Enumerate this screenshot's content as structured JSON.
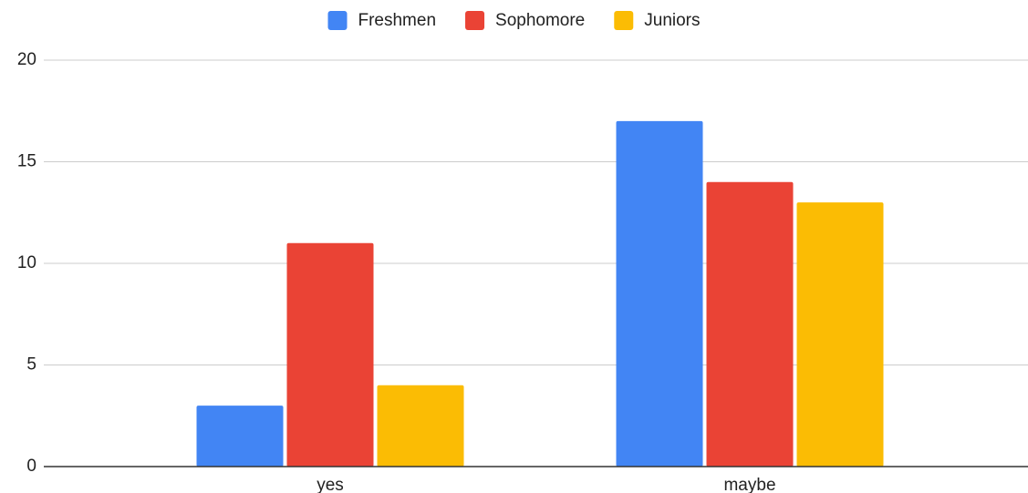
{
  "chart_data": {
    "type": "bar",
    "categories": [
      "yes",
      "maybe"
    ],
    "series": [
      {
        "name": "Freshmen",
        "color": "#4285f4",
        "values": [
          3,
          17
        ]
      },
      {
        "name": "Sophomore",
        "color": "#ea4335",
        "values": [
          11,
          14
        ]
      },
      {
        "name": "Juniors",
        "color": "#fbbc04",
        "values": [
          4,
          13
        ]
      }
    ],
    "ylim": [
      0,
      20
    ],
    "yticks": [
      0,
      5,
      10,
      15,
      20
    ],
    "grid": true,
    "legend": "top"
  }
}
